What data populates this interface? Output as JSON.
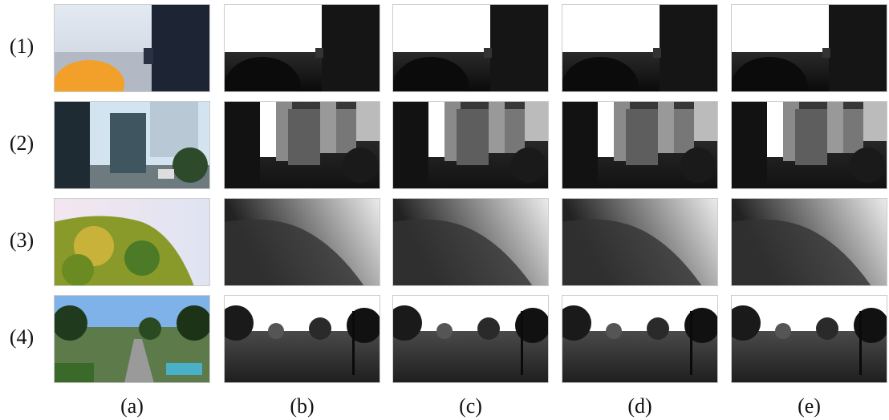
{
  "rows": [
    {
      "label": "(1)"
    },
    {
      "label": "(2)"
    },
    {
      "label": "(3)"
    },
    {
      "label": "(4)"
    }
  ],
  "columns": [
    {
      "label": "(a)"
    },
    {
      "label": "(b)"
    },
    {
      "label": "(c)"
    },
    {
      "label": "(d)"
    },
    {
      "label": "(e)"
    }
  ]
}
